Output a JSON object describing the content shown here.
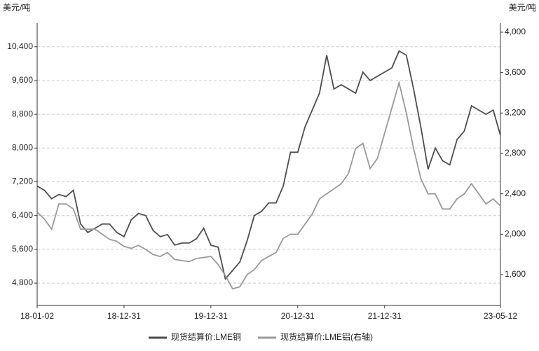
{
  "chart_data": {
    "type": "line",
    "y_unit": "美元/吨",
    "y2_unit": "美元/吨",
    "categories": [
      "18-01-02",
      null,
      null,
      null,
      null,
      null,
      null,
      null,
      null,
      null,
      null,
      null,
      "18-12-31",
      null,
      null,
      null,
      null,
      null,
      null,
      null,
      null,
      null,
      null,
      null,
      "19-12-31",
      null,
      null,
      null,
      null,
      null,
      null,
      null,
      null,
      null,
      null,
      null,
      "20-12-31",
      null,
      null,
      null,
      null,
      null,
      null,
      null,
      null,
      null,
      null,
      null,
      "21-12-31",
      null,
      null,
      null,
      null,
      null,
      null,
      null,
      null,
      null,
      null,
      null,
      null,
      null,
      null,
      null,
      "23-05-12"
    ],
    "series": [
      {
        "name": "现货结算价:LME铜",
        "color": "#4d4d4d",
        "values": [
          7100,
          7000,
          6800,
          6900,
          6850,
          7000,
          6200,
          6000,
          6100,
          6200,
          6200,
          6000,
          5900,
          6300,
          6450,
          6400,
          6050,
          5900,
          5950,
          5700,
          5750,
          5750,
          5850,
          6100,
          5700,
          5650,
          4900,
          5100,
          5300,
          5800,
          6400,
          6500,
          6700,
          6700,
          7100,
          7900,
          7900,
          8500,
          8900,
          9300,
          10200,
          9400,
          9500,
          9400,
          9300,
          9800,
          9600,
          9700,
          9800,
          9900,
          10300,
          10200,
          9400,
          8500,
          7500,
          8000,
          7700,
          7600,
          8200,
          8400,
          9000,
          8900,
          8800,
          8900,
          8300
        ]
      },
      {
        "name": "现货结算价:LME铝(右轴)",
        "color": "#999999",
        "axis": "y2",
        "values": [
          2220,
          2150,
          2050,
          2300,
          2300,
          2250,
          2050,
          2050,
          2050,
          2000,
          1950,
          1930,
          1880,
          1860,
          1890,
          1850,
          1800,
          1780,
          1820,
          1750,
          1740,
          1730,
          1760,
          1770,
          1780,
          1700,
          1590,
          1460,
          1480,
          1600,
          1650,
          1740,
          1780,
          1820,
          1960,
          2000,
          2000,
          2100,
          2200,
          2350,
          2400,
          2450,
          2500,
          2600,
          2850,
          2900,
          2650,
          2750,
          3000,
          3250,
          3500,
          3200,
          2850,
          2550,
          2400,
          2400,
          2250,
          2250,
          2350,
          2400,
          2500,
          2400,
          2300,
          2350,
          2280
        ]
      }
    ],
    "ylim": [
      4270,
      10960
    ],
    "yticks": [
      {
        "value": 4800,
        "label": "4,800"
      },
      {
        "value": 5600,
        "label": "5,600"
      },
      {
        "value": 6400,
        "label": "6,400"
      },
      {
        "value": 7200,
        "label": "7,200"
      },
      {
        "value": 8000,
        "label": "8,000"
      },
      {
        "value": 8800,
        "label": "8,800"
      },
      {
        "value": 9600,
        "label": "9,600"
      },
      {
        "value": 10400,
        "label": "10,400"
      }
    ],
    "y2lim": [
      1295,
      4090
    ],
    "y2ticks": [
      {
        "value": 1600,
        "label": "1,600"
      },
      {
        "value": 2000,
        "label": "2,000"
      },
      {
        "value": 2400,
        "label": "2,400"
      },
      {
        "value": 2800,
        "label": "2,800"
      },
      {
        "value": 3200,
        "label": "3,200"
      },
      {
        "value": 3600,
        "label": "3,600"
      },
      {
        "value": 4000,
        "label": "4,000"
      }
    ],
    "grid": true,
    "legend": "bottom"
  }
}
